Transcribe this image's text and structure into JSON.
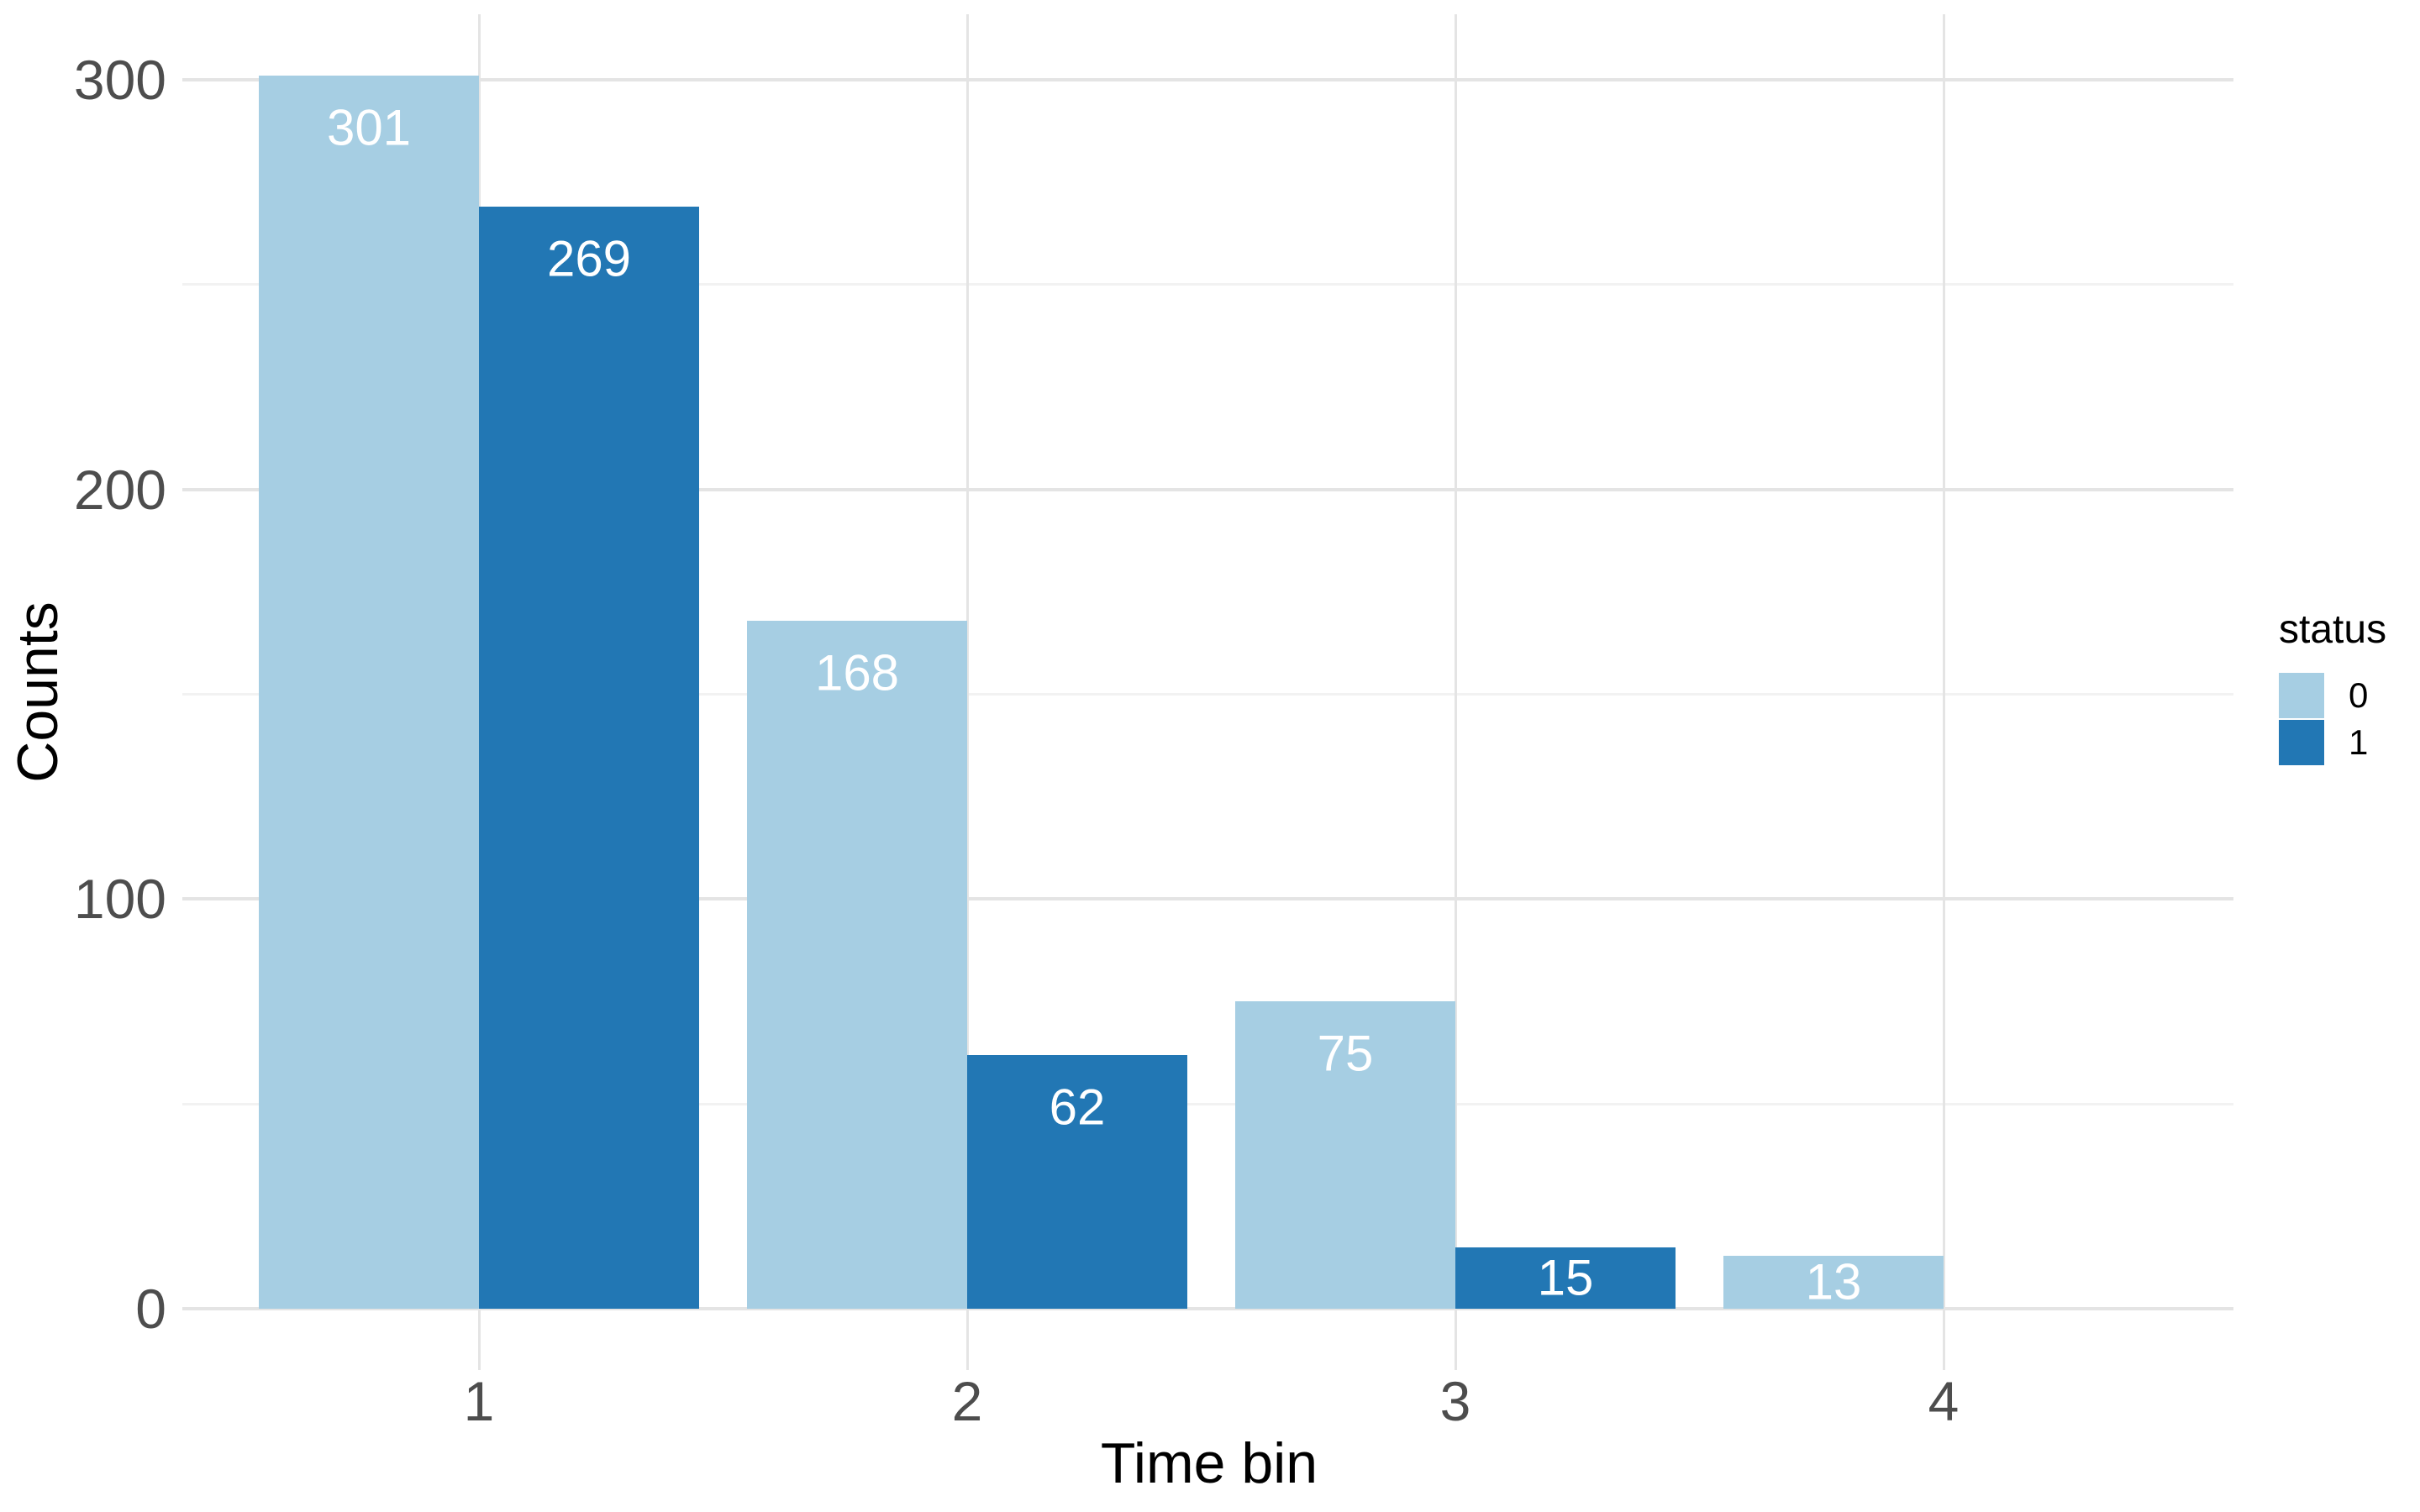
{
  "chart_data": {
    "type": "bar",
    "grouping": "dodged",
    "title": "",
    "xlabel": "Time bin",
    "ylabel": "Counts",
    "categories": [
      "1",
      "2",
      "3",
      "4"
    ],
    "series": [
      {
        "name": "0",
        "color": "#a6cee3",
        "values": [
          301,
          168,
          75,
          13
        ]
      },
      {
        "name": "1",
        "color": "#2277b4",
        "values": [
          269,
          62,
          15,
          null
        ]
      }
    ],
    "bar_value_labels": {
      "shown": true,
      "color": "#ffffff",
      "values_series_0": [
        301,
        168,
        75,
        13
      ],
      "values_series_1": [
        269,
        62,
        15,
        null
      ]
    },
    "ylim": [
      0,
      316
    ],
    "yticks_major": [
      0,
      100,
      200,
      300
    ],
    "yticks_minor": [
      50,
      150,
      250
    ],
    "grid": "on",
    "legend": {
      "title": "status",
      "position": "right",
      "entries": [
        "0",
        "1"
      ]
    },
    "colors": {
      "axis_text": "#4d4d4d",
      "axis_title": "#000000",
      "grid_major": "#e4e4e4",
      "grid_minor": "#f2f2f2",
      "background": "#ffffff"
    }
  }
}
